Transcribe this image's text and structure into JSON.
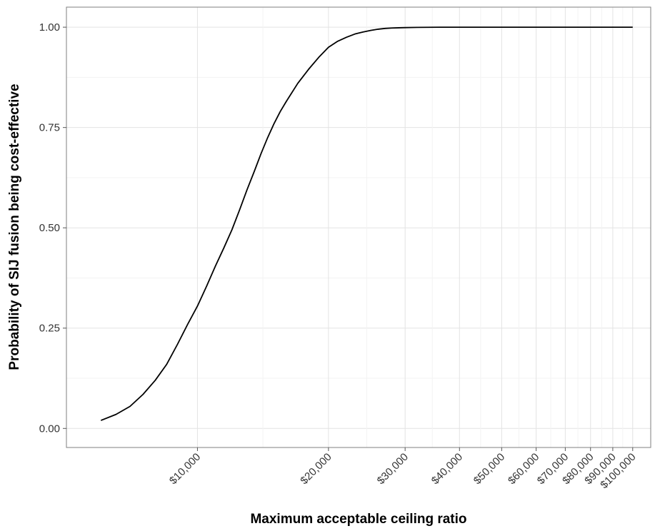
{
  "chart_data": {
    "type": "line",
    "title": "",
    "xlabel": "Maximum acceptable ceiling ratio",
    "ylabel": "Probability of SIJ fusion being cost-effective",
    "x_scale": "log",
    "xlim": [
      5000,
      110000
    ],
    "ylim": [
      -0.0475,
      1.05
    ],
    "grid": true,
    "legend": "none",
    "x_ticks": [
      10000,
      20000,
      30000,
      40000,
      50000,
      60000,
      70000,
      80000,
      90000,
      100000
    ],
    "x_tick_labels": [
      "$10,000",
      "$20,000",
      "$30,000",
      "$40,000",
      "$50,000",
      "$60,000",
      "$70,000",
      "$80,000",
      "$90,000",
      "$100,000"
    ],
    "y_ticks": [
      0,
      0.25,
      0.5,
      0.75,
      1
    ],
    "y_tick_labels": [
      "0.00",
      "0.25",
      "0.50",
      "0.75",
      "1.00"
    ],
    "series": [
      {
        "name": "",
        "color": "#000000",
        "x": [
          6000,
          6500,
          7000,
          7500,
          8000,
          8500,
          9000,
          9500,
          10000,
          10500,
          11000,
          11500,
          12000,
          12500,
          13000,
          13500,
          14000,
          14500,
          15000,
          15500,
          16000,
          17000,
          18000,
          19000,
          20000,
          21000,
          22000,
          23000,
          24000,
          25000,
          26000,
          27000,
          28000,
          29000,
          30000,
          32000,
          34000,
          36000,
          38000,
          40000,
          45000,
          50000,
          60000,
          70000,
          80000,
          90000,
          100000
        ],
        "y": [
          0.02,
          0.035,
          0.055,
          0.085,
          0.12,
          0.16,
          0.21,
          0.26,
          0.305,
          0.355,
          0.405,
          0.45,
          0.495,
          0.545,
          0.595,
          0.64,
          0.685,
          0.725,
          0.76,
          0.79,
          0.815,
          0.86,
          0.895,
          0.925,
          0.95,
          0.965,
          0.975,
          0.983,
          0.988,
          0.992,
          0.995,
          0.997,
          0.998,
          0.9985,
          0.999,
          0.9995,
          0.9998,
          1.0,
          1.0,
          1.0,
          1.0,
          1.0,
          1.0,
          1.0,
          1.0,
          1.0,
          1.0
        ]
      }
    ]
  }
}
